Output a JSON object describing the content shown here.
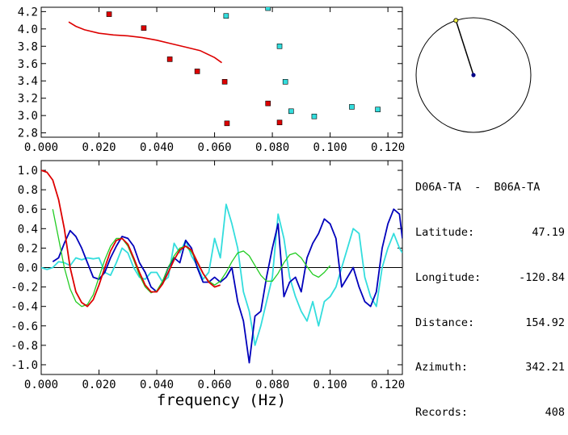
{
  "colors": {
    "red": "#dd0000",
    "cyan": "#33dddd",
    "blue": "#0000bb",
    "green": "#22cc22",
    "black": "#000000",
    "compass_dot": "#000088",
    "compass_marker": "#eeee44"
  },
  "info": {
    "pair": "D06A-TA  -  B06A-TA",
    "rows": [
      {
        "label": "Latitude:",
        "value": "47.19"
      },
      {
        "label": "Longitude:",
        "value": "-120.84"
      },
      {
        "label": "Distance:",
        "value": "154.92"
      },
      {
        "label": "Azimuth:",
        "value": "342.21"
      },
      {
        "label": "Records:",
        "value": "408"
      }
    ]
  },
  "compass": {
    "azimuth_deg": 342.21
  },
  "chart_data": [
    {
      "type": "scatter",
      "xlim": [
        0.0,
        0.125
      ],
      "ylim": [
        2.75,
        4.25
      ],
      "x_ticks": [
        "0.000",
        "0.020",
        "0.040",
        "0.060",
        "0.080",
        "0.100",
        "0.120"
      ],
      "y_ticks": [
        "2.8",
        "3.0",
        "3.2",
        "3.4",
        "3.6",
        "3.8",
        "4.0",
        "4.2"
      ],
      "series": [
        {
          "color": "red",
          "kind": "markers",
          "points": [
            [
              0.0235,
              4.17
            ],
            [
              0.0355,
              4.01
            ],
            [
              0.0445,
              3.65
            ],
            [
              0.054,
              3.51
            ],
            [
              0.0635,
              3.39
            ],
            [
              0.0785,
              3.14
            ],
            [
              0.0825,
              2.92
            ],
            [
              0.0643,
              2.91
            ]
          ]
        },
        {
          "color": "cyan",
          "kind": "markers",
          "points": [
            [
              0.064,
              4.15
            ],
            [
              0.0785,
              4.24
            ],
            [
              0.0825,
              3.8
            ],
            [
              0.0845,
              3.39
            ],
            [
              0.0865,
              3.05
            ],
            [
              0.0945,
              2.99
            ],
            [
              0.1075,
              3.1
            ],
            [
              0.1165,
              3.07
            ]
          ]
        },
        {
          "color": "red",
          "kind": "line",
          "points": [
            [
              0.0095,
              4.08
            ],
            [
              0.012,
              4.03
            ],
            [
              0.015,
              3.99
            ],
            [
              0.02,
              3.95
            ],
            [
              0.025,
              3.93
            ],
            [
              0.03,
              3.92
            ],
            [
              0.035,
              3.9
            ],
            [
              0.04,
              3.87
            ],
            [
              0.045,
              3.83
            ],
            [
              0.05,
              3.79
            ],
            [
              0.055,
              3.75
            ],
            [
              0.06,
              3.67
            ],
            [
              0.0625,
              3.61
            ]
          ]
        }
      ]
    },
    {
      "type": "line",
      "xlabel": "frequency (Hz)",
      "xlim": [
        0.0,
        0.125
      ],
      "ylim": [
        -1.1,
        1.1
      ],
      "x_ticks": [
        "0.000",
        "0.020",
        "0.040",
        "0.060",
        "0.080",
        "0.100",
        "0.120"
      ],
      "y_ticks": [
        "1.0",
        "0.8",
        "0.6",
        "0.4",
        "0.2",
        "0.0",
        "-0.2",
        "-0.4",
        "-0.6",
        "-0.8",
        "-1.0"
      ],
      "zero_line": true,
      "series": [
        {
          "color": "cyan",
          "x": [
            0.0,
            0.002,
            0.004,
            0.006,
            0.008,
            0.01,
            0.012,
            0.014,
            0.016,
            0.018,
            0.02,
            0.022,
            0.024,
            0.026,
            0.028,
            0.03,
            0.032,
            0.034,
            0.036,
            0.038,
            0.04,
            0.042,
            0.044,
            0.046,
            0.048,
            0.05,
            0.052,
            0.054,
            0.056,
            0.058,
            0.06,
            0.062,
            0.064,
            0.066,
            0.068,
            0.07,
            0.072,
            0.074,
            0.076,
            0.078,
            0.08,
            0.082,
            0.084,
            0.086,
            0.088,
            0.09,
            0.092,
            0.094,
            0.096,
            0.098,
            0.1,
            0.102,
            0.104,
            0.106,
            0.108,
            0.11,
            0.112,
            0.114,
            0.116,
            0.118,
            0.12,
            0.122,
            0.124,
            0.125
          ],
          "y": [
            0.0,
            -0.02,
            0.0,
            0.06,
            0.05,
            0.02,
            0.1,
            0.08,
            0.1,
            0.09,
            0.1,
            -0.05,
            -0.08,
            0.05,
            0.2,
            0.15,
            0.0,
            -0.1,
            -0.12,
            -0.05,
            -0.05,
            -0.15,
            -0.1,
            0.25,
            0.15,
            0.28,
            0.12,
            0.02,
            -0.12,
            -0.05,
            0.3,
            0.1,
            0.65,
            0.45,
            0.2,
            -0.25,
            -0.45,
            -0.8,
            -0.6,
            -0.35,
            -0.1,
            0.55,
            0.3,
            -0.1,
            -0.3,
            -0.45,
            -0.55,
            -0.35,
            -0.6,
            -0.35,
            -0.3,
            -0.2,
            0.0,
            0.2,
            0.4,
            0.35,
            -0.1,
            -0.3,
            -0.4,
            0.0,
            0.2,
            0.35,
            0.2,
            0.15
          ]
        },
        {
          "color": "blue",
          "x": [
            0.004,
            0.006,
            0.008,
            0.01,
            0.012,
            0.014,
            0.016,
            0.018,
            0.02,
            0.022,
            0.024,
            0.026,
            0.028,
            0.03,
            0.032,
            0.034,
            0.036,
            0.038,
            0.04,
            0.042,
            0.044,
            0.046,
            0.048,
            0.05,
            0.052,
            0.054,
            0.056,
            0.058,
            0.06,
            0.062,
            0.064,
            0.066,
            0.068,
            0.07,
            0.072,
            0.074,
            0.076,
            0.078,
            0.08,
            0.082,
            0.084,
            0.086,
            0.088,
            0.09,
            0.092,
            0.094,
            0.096,
            0.098,
            0.1,
            0.102,
            0.104,
            0.106,
            0.108,
            0.11,
            0.112,
            0.114,
            0.116,
            0.118,
            0.12,
            0.122,
            0.124,
            0.125
          ],
          "y": [
            0.06,
            0.1,
            0.25,
            0.38,
            0.32,
            0.2,
            0.05,
            -0.1,
            -0.12,
            -0.05,
            0.1,
            0.22,
            0.32,
            0.3,
            0.22,
            0.05,
            -0.05,
            -0.2,
            -0.25,
            -0.15,
            0.0,
            0.1,
            0.05,
            0.28,
            0.2,
            0.0,
            -0.15,
            -0.15,
            -0.1,
            -0.15,
            -0.1,
            0.0,
            -0.35,
            -0.55,
            -0.98,
            -0.5,
            -0.45,
            -0.1,
            0.2,
            0.45,
            -0.3,
            -0.15,
            -0.1,
            -0.25,
            0.1,
            0.25,
            0.35,
            0.5,
            0.45,
            0.3,
            -0.2,
            -0.1,
            0.0,
            -0.2,
            -0.35,
            -0.4,
            -0.25,
            0.2,
            0.45,
            0.6,
            0.55,
            0.3
          ]
        },
        {
          "color": "green",
          "x": [
            0.004,
            0.006,
            0.008,
            0.01,
            0.012,
            0.014,
            0.016,
            0.018,
            0.02,
            0.022,
            0.024,
            0.026,
            0.028,
            0.03,
            0.032,
            0.034,
            0.036,
            0.038,
            0.04,
            0.042,
            0.044,
            0.046,
            0.048,
            0.05,
            0.052,
            0.054,
            0.056,
            0.058,
            0.06,
            0.062,
            0.064,
            0.066,
            0.068,
            0.07,
            0.072,
            0.074,
            0.076,
            0.078,
            0.08,
            0.082,
            0.084,
            0.086,
            0.088,
            0.09,
            0.092,
            0.094,
            0.096,
            0.098,
            0.1
          ],
          "y": [
            0.6,
            0.3,
            0.0,
            -0.22,
            -0.35,
            -0.4,
            -0.38,
            -0.28,
            -0.1,
            0.08,
            0.22,
            0.3,
            0.3,
            0.22,
            0.08,
            -0.08,
            -0.2,
            -0.26,
            -0.24,
            -0.14,
            0.0,
            0.12,
            0.2,
            0.22,
            0.16,
            0.05,
            -0.06,
            -0.14,
            -0.18,
            -0.14,
            -0.05,
            0.06,
            0.15,
            0.17,
            0.12,
            0.02,
            -0.08,
            -0.14,
            -0.14,
            -0.06,
            0.05,
            0.13,
            0.15,
            0.1,
            0.01,
            -0.07,
            -0.1,
            -0.05,
            0.02
          ]
        },
        {
          "color": "red",
          "x": [
            0.0,
            0.002,
            0.004,
            0.006,
            0.008,
            0.01,
            0.012,
            0.014,
            0.016,
            0.018,
            0.02,
            0.022,
            0.024,
            0.026,
            0.028,
            0.03,
            0.032,
            0.034,
            0.036,
            0.038,
            0.04,
            0.042,
            0.044,
            0.046,
            0.048,
            0.05,
            0.052,
            0.054,
            0.056,
            0.058,
            0.06,
            0.062
          ],
          "y": [
            1.0,
            0.98,
            0.9,
            0.7,
            0.4,
            0.0,
            -0.25,
            -0.36,
            -0.4,
            -0.33,
            -0.18,
            0.0,
            0.17,
            0.28,
            0.3,
            0.24,
            0.1,
            -0.05,
            -0.18,
            -0.25,
            -0.25,
            -0.17,
            -0.05,
            0.08,
            0.18,
            0.22,
            0.18,
            0.06,
            -0.06,
            -0.15,
            -0.2,
            -0.18
          ]
        }
      ]
    }
  ]
}
